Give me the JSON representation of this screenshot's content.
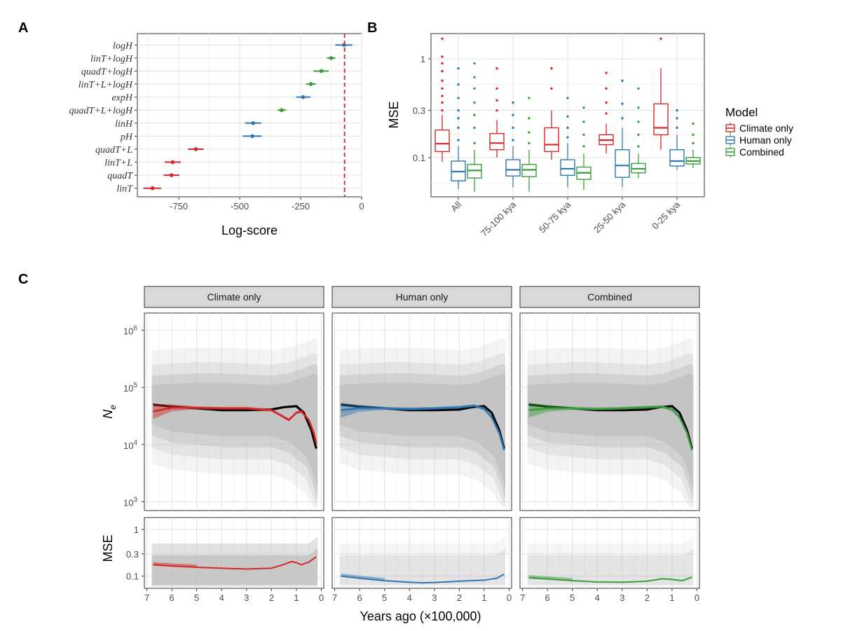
{
  "panels": {
    "a_letter": "A",
    "b_letter": "B",
    "c_letter": "C"
  },
  "colors": {
    "climate": "#d62728",
    "human": "#2f77b4",
    "combined": "#3a9e3a",
    "truth": "#000000",
    "ribbon": "#bdbdbd"
  },
  "chart_data": [
    {
      "id": "A",
      "type": "scatter",
      "xlabel": "Log-score",
      "xlim": [
        -920,
        0
      ],
      "xticks": [
        -750,
        -500,
        -250,
        0
      ],
      "reference_line": -70,
      "models": [
        {
          "label": "logH",
          "value": -72,
          "lo": -108,
          "hi": -38,
          "group": "human"
        },
        {
          "label": "linT+logH",
          "value": -125,
          "lo": -142,
          "hi": -108,
          "group": "combined"
        },
        {
          "label": "quadT+logH",
          "value": -165,
          "lo": -198,
          "hi": -135,
          "group": "combined"
        },
        {
          "label": "linT+L+logH",
          "value": -208,
          "lo": -228,
          "hi": -188,
          "group": "combined"
        },
        {
          "label": "expH",
          "value": -240,
          "lo": -268,
          "hi": -210,
          "group": "human"
        },
        {
          "label": "quadT+L+logH",
          "value": -328,
          "lo": -345,
          "hi": -310,
          "group": "combined"
        },
        {
          "label": "linH",
          "value": -445,
          "lo": -478,
          "hi": -412,
          "group": "human"
        },
        {
          "label": "pH",
          "value": -448,
          "lo": -488,
          "hi": -410,
          "group": "human"
        },
        {
          "label": "quadT+L",
          "value": -680,
          "lo": -712,
          "hi": -648,
          "group": "climate"
        },
        {
          "label": "linT+L",
          "value": -775,
          "lo": -808,
          "hi": -742,
          "group": "climate"
        },
        {
          "label": "quadT",
          "value": -780,
          "lo": -812,
          "hi": -748,
          "group": "climate"
        },
        {
          "label": "linT",
          "value": -858,
          "lo": -895,
          "hi": -822,
          "group": "climate"
        }
      ]
    },
    {
      "id": "B",
      "type": "box",
      "ylabel": "MSE",
      "yscale": "log",
      "ylim": [
        0.04,
        1.8
      ],
      "yticks": [
        0.1,
        0.3,
        1
      ],
      "ytick_labels": [
        "0.1",
        "0.3",
        "1"
      ],
      "categories": [
        "All",
        "75-100 kya",
        "50-75 kya",
        "25-50 kya",
        "0-25 kya"
      ],
      "legend": {
        "title": "Model",
        "entries": [
          "Climate only",
          "Human only",
          "Combined"
        ]
      },
      "series": [
        {
          "name": "Climate only",
          "boxes": [
            {
              "lw": 0.09,
              "q1": 0.115,
              "med": 0.138,
              "q3": 0.19,
              "uw": 0.27,
              "outliers": [
                0.3,
                0.36,
                0.42,
                0.5,
                0.6,
                0.75,
                0.9,
                1.05,
                1.6
              ]
            },
            {
              "lw": 0.1,
              "q1": 0.12,
              "med": 0.14,
              "q3": 0.175,
              "uw": 0.24,
              "outliers": [
                0.3,
                0.38,
                0.5,
                0.8
              ]
            },
            {
              "lw": 0.095,
              "q1": 0.115,
              "med": 0.135,
              "q3": 0.2,
              "uw": 0.3,
              "outliers": [
                0.5,
                0.8
              ]
            },
            {
              "lw": 0.11,
              "q1": 0.135,
              "med": 0.15,
              "q3": 0.17,
              "uw": 0.22,
              "outliers": [
                0.28,
                0.36,
                0.5,
                0.72
              ]
            },
            {
              "lw": 0.12,
              "q1": 0.17,
              "med": 0.2,
              "q3": 0.35,
              "uw": 0.8,
              "outliers": [
                1.6
              ]
            }
          ]
        },
        {
          "name": "Human only",
          "boxes": [
            {
              "lw": 0.048,
              "q1": 0.058,
              "med": 0.072,
              "q3": 0.092,
              "uw": 0.13,
              "outliers": [
                0.15,
                0.2,
                0.25,
                0.3,
                0.4,
                0.55,
                0.8
              ]
            },
            {
              "lw": 0.05,
              "q1": 0.065,
              "med": 0.075,
              "q3": 0.095,
              "uw": 0.13,
              "outliers": [
                0.15,
                0.2,
                0.27,
                0.36
              ]
            },
            {
              "lw": 0.05,
              "q1": 0.066,
              "med": 0.077,
              "q3": 0.095,
              "uw": 0.14,
              "outliers": [
                0.16,
                0.2,
                0.26,
                0.4
              ]
            },
            {
              "lw": 0.05,
              "q1": 0.063,
              "med": 0.083,
              "q3": 0.12,
              "uw": 0.2,
              "outliers": [
                0.25,
                0.35,
                0.6
              ]
            },
            {
              "lw": 0.075,
              "q1": 0.082,
              "med": 0.092,
              "q3": 0.12,
              "uw": 0.17,
              "outliers": [
                0.2,
                0.25,
                0.3
              ]
            }
          ]
        },
        {
          "name": "Combined",
          "boxes": [
            {
              "lw": 0.045,
              "q1": 0.062,
              "med": 0.074,
              "q3": 0.085,
              "uw": 0.12,
              "outliers": [
                0.14,
                0.2,
                0.27,
                0.36,
                0.5,
                0.65,
                0.9
              ]
            },
            {
              "lw": 0.045,
              "q1": 0.064,
              "med": 0.075,
              "q3": 0.085,
              "uw": 0.12,
              "outliers": [
                0.14,
                0.18,
                0.25,
                0.4
              ]
            },
            {
              "lw": 0.047,
              "q1": 0.06,
              "med": 0.07,
              "q3": 0.08,
              "uw": 0.11,
              "outliers": [
                0.13,
                0.17,
                0.23,
                0.32
              ]
            },
            {
              "lw": 0.062,
              "q1": 0.07,
              "med": 0.077,
              "q3": 0.087,
              "uw": 0.11,
              "outliers": [
                0.13,
                0.17,
                0.23,
                0.32,
                0.5
              ]
            },
            {
              "lw": 0.078,
              "q1": 0.086,
              "med": 0.092,
              "q3": 0.1,
              "uw": 0.12,
              "outliers": [
                0.14,
                0.17,
                0.22
              ]
            }
          ]
        }
      ]
    },
    {
      "id": "C",
      "type": "line",
      "facets": [
        "Climate only",
        "Human only",
        "Combined"
      ],
      "xlabel": "Years ago (×100,000)",
      "xlim": [
        7.1,
        -0.1
      ],
      "xticks": [
        7,
        6,
        5,
        4,
        3,
        2,
        1,
        0
      ],
      "top": {
        "ylabel": "N",
        "ylabel_sub": "e",
        "yscale": "log",
        "ylim": [
          700,
          2000000
        ],
        "ytick_base": "10",
        "ytick_exponents": [
          "3",
          "4",
          "5",
          "6"
        ],
        "truth": {
          "x": [
            6.75,
            6,
            5,
            4,
            3,
            2,
            1.5,
            1.0,
            0.7,
            0.4,
            0.2
          ],
          "y": [
            50000,
            46000,
            43000,
            40000,
            40000,
            41000,
            45000,
            47000,
            36000,
            18000,
            8500
          ]
        },
        "fits": [
          {
            "x": [
              6.75,
              6,
              5,
              4,
              3,
              2,
              1.6,
              1.3,
              1.0,
              0.8,
              0.5,
              0.3,
              0.2
            ],
            "y": [
              38000,
              44000,
              44000,
              43000,
              43000,
              40000,
              32000,
              27000,
              36000,
              38000,
              27000,
              16000,
              10500
            ]
          },
          {
            "x": [
              6.75,
              6,
              5,
              4,
              3,
              2,
              1.4,
              1.0,
              0.7,
              0.4,
              0.2
            ],
            "y": [
              40000,
              43000,
              43000,
              42000,
              43000,
              45000,
              48000,
              42000,
              30000,
              16000,
              8000
            ]
          },
          {
            "x": [
              6.75,
              6,
              5,
              4,
              3,
              2,
              1.4,
              1.0,
              0.7,
              0.4,
              0.2
            ],
            "y": [
              40000,
              43000,
              43000,
              42000,
              43000,
              45000,
              46000,
              41000,
              30000,
              16000,
              8000
            ]
          }
        ]
      },
      "bottom": {
        "ylabel": "MSE",
        "yscale": "log",
        "ylim": [
          0.055,
          1.8
        ],
        "yticks": [
          0.1,
          0.3,
          1
        ],
        "ytick_labels": [
          "0.1",
          "0.3",
          "1"
        ],
        "fits": [
          {
            "x": [
              6.75,
              6,
              5,
              4,
              3,
              2,
              1.5,
              1.2,
              1.0,
              0.8,
              0.5,
              0.2
            ],
            "y": [
              0.175,
              0.165,
              0.155,
              0.148,
              0.142,
              0.148,
              0.178,
              0.205,
              0.195,
              0.175,
              0.2,
              0.26
            ]
          },
          {
            "x": [
              6.75,
              6,
              5,
              4,
              3.5,
              3,
              2,
              1,
              0.5,
              0.2
            ],
            "y": [
              0.1,
              0.09,
              0.08,
              0.074,
              0.072,
              0.073,
              0.078,
              0.082,
              0.09,
              0.11
            ]
          },
          {
            "x": [
              6.75,
              6,
              5,
              4,
              3,
              2,
              1.4,
              1.0,
              0.6,
              0.2
            ],
            "y": [
              0.092,
              0.087,
              0.08,
              0.075,
              0.074,
              0.078,
              0.088,
              0.085,
              0.08,
              0.095
            ]
          }
        ]
      }
    }
  ]
}
